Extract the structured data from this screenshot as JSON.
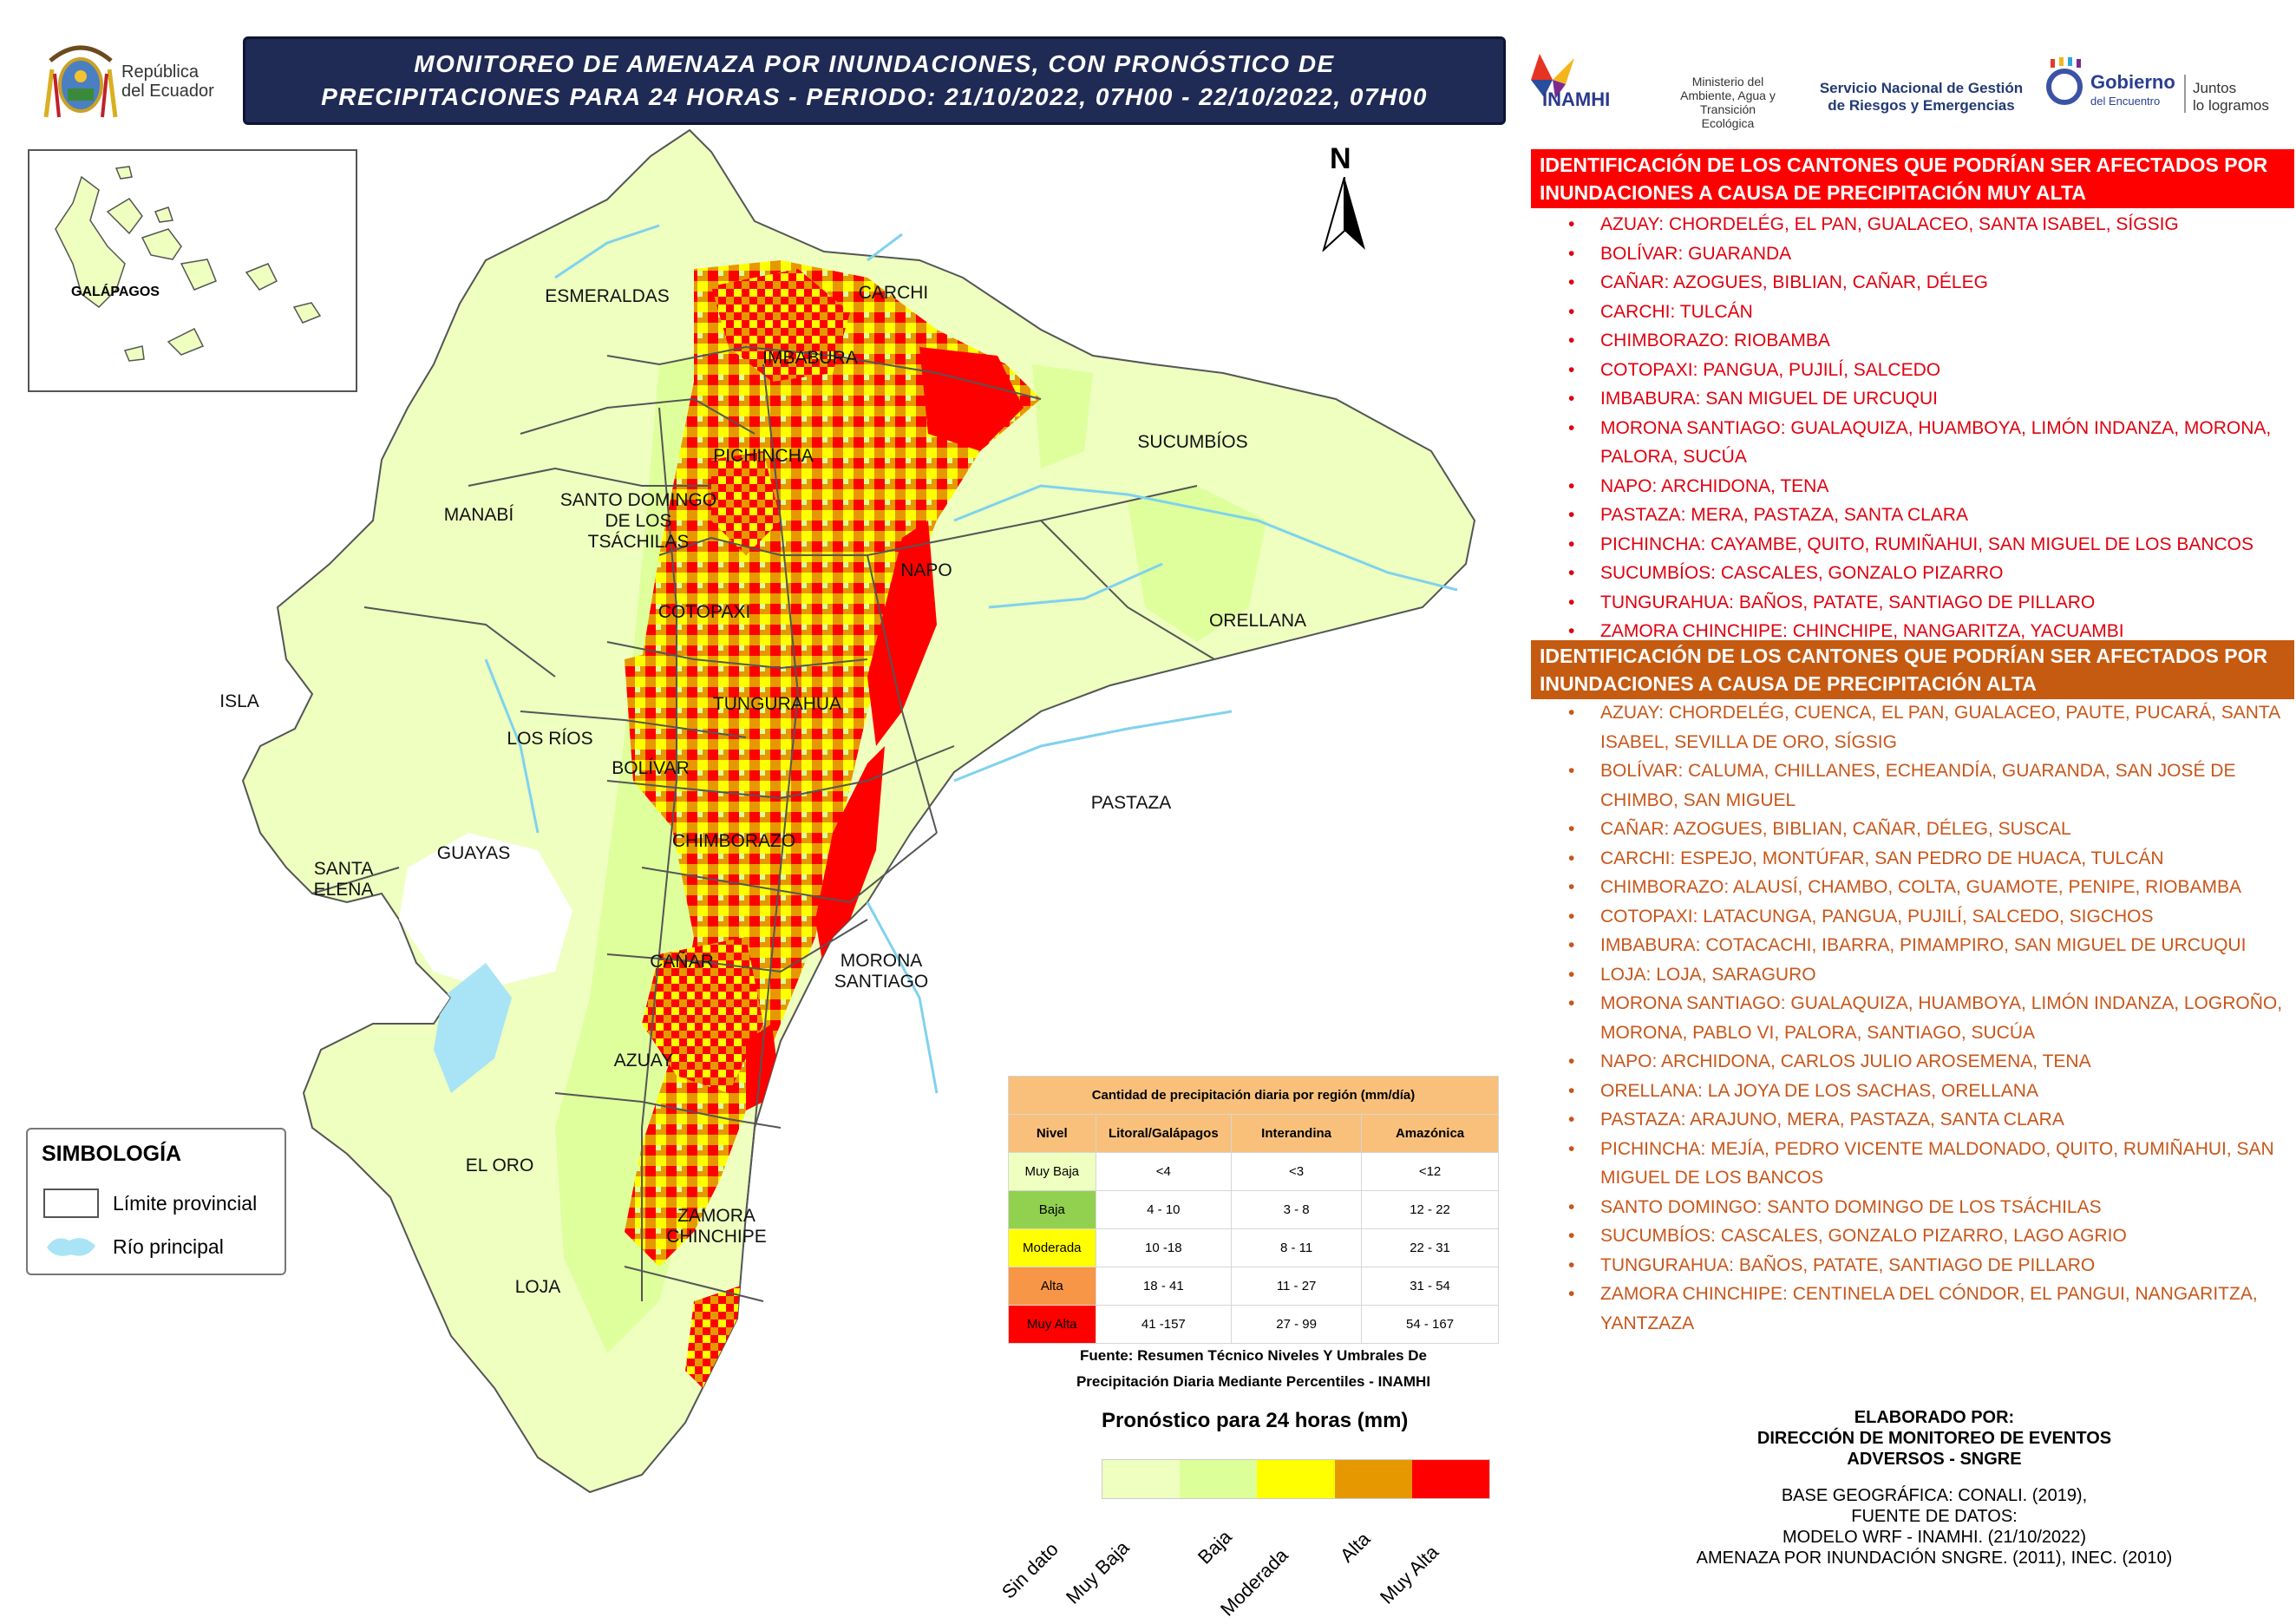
{
  "header": {
    "country_text_line1": "República",
    "country_text_line2": "del Ecuador",
    "title_line1": "MONITOREO DE AMENAZA POR INUNDACIONES, CON PRONÓSTICO DE",
    "title_line2": "PRECIPITACIONES  PARA 24  HORAS - PERIODO: 21/10/2022, 07H00 - 22/10/2022, 07H00",
    "logo_inamhi": "INAMHI",
    "logo_ministerio": [
      "Ministerio del",
      "Ambiente, Agua y",
      "Transición Ecológica"
    ],
    "logo_sngre": [
      "Servicio Nacional de Gestión",
      "de Riesgos y Emergencias"
    ],
    "logo_gobierno": "Gobierno",
    "logo_gobierno_sub": "del Encuentro",
    "logo_juntos": [
      "Juntos",
      "lo logramos"
    ]
  },
  "inset": {
    "label": "GALÁPAGOS"
  },
  "north_label": "N",
  "map_labels": {
    "esmeraldas": "ESMERALDAS",
    "carchi": "CARCHI",
    "imbabura": "IMBABURA",
    "sucumbios": "SUCUMBÍOS",
    "pichincha": "PICHINCHA",
    "manabi": "MANABÍ",
    "santo_domingo": [
      "SANTO DOMINGO",
      "DE LOS",
      "TSÁCHILAS"
    ],
    "napo": "NAPO",
    "orellana": "ORELLANA",
    "cotopaxi": "COTOPAXI",
    "isla": "ISLA",
    "tungurahua": "TUNGURAHUA",
    "los_rios": "LOS RÍOS",
    "bolivar": "BOLÍVAR",
    "pastaza": "PASTAZA",
    "santa_elena": [
      "SANTA",
      "ELENA"
    ],
    "guayas": "GUAYAS",
    "chimborazo": "CHIMBORAZO",
    "canar": "CAÑAR",
    "morona": [
      "MORONA",
      "SANTIAGO"
    ],
    "azuay": "AZUAY",
    "el_oro": "EL ORO",
    "zamora": [
      "ZAMORA",
      "CHINCHIPE"
    ],
    "loja": "LOJA"
  },
  "symbology": {
    "title": "SIMBOLOGÍA",
    "limit_label": "Límite provincial",
    "river_label": "Río principal"
  },
  "list_muy_alta": {
    "header": [
      "IDENTIFICACIÓN DE LOS CANTONES QUE PODRÍAN SER AFECTADOS POR",
      "INUNDACIONES A CAUSA DE  PRECIPITACIÓN MUY ALTA"
    ],
    "color": "#ff0000",
    "items": [
      "AZUAY: CHORDELÉG, EL PAN, GUALACEO, SANTA ISABEL, SÍGSIG",
      "BOLÍVAR: GUARANDA",
      "CAÑAR: AZOGUES, BIBLIAN, CAÑAR, DÉLEG",
      "CARCHI: TULCÁN",
      "CHIMBORAZO: RIOBAMBA",
      "COTOPAXI: PANGUA, PUJILÍ, SALCEDO",
      "IMBABURA: SAN MIGUEL DE URCUQUI",
      "MORONA SANTIAGO: GUALAQUIZA, HUAMBOYA, LIMÓN INDANZA, MORONA, PALORA, SUCÚA",
      "NAPO: ARCHIDONA, TENA",
      "PASTAZA: MERA, PASTAZA, SANTA CLARA",
      "PICHINCHA: CAYAMBE, QUITO, RUMIÑAHUI, SAN MIGUEL DE LOS BANCOS",
      "SUCUMBÍOS: CASCALES, GONZALO PIZARRO",
      "TUNGURAHUA: BAÑOS, PATATE, SANTIAGO DE PILLARO",
      "ZAMORA CHINCHIPE: CHINCHIPE, NANGARITZA, YACUAMBI"
    ]
  },
  "list_alta": {
    "header": [
      "IDENTIFICACIÓN DE LOS CANTONES QUE PODRÍAN SER AFECTADOS POR",
      "INUNDACIONES A CAUSA DE  PRECIPITACIÓN  ALTA"
    ],
    "color": "#c55a11",
    "items": [
      "AZUAY: CHORDELÉG, CUENCA, EL PAN, GUALACEO, PAUTE, PUCARÁ, SANTA ISABEL, SEVILLA DE ORO, SÍGSIG",
      "BOLÍVAR: CALUMA, CHILLANES, ECHEANDÍA, GUARANDA, SAN JOSÉ DE CHIMBO, SAN MIGUEL",
      "CAÑAR: AZOGUES, BIBLIAN, CAÑAR, DÉLEG, SUSCAL",
      "CARCHI: ESPEJO, MONTÚFAR, SAN PEDRO DE HUACA, TULCÁN",
      "CHIMBORAZO: ALAUSÍ, CHAMBO, COLTA, GUAMOTE, PENIPE, RIOBAMBA",
      "COTOPAXI: LATACUNGA, PANGUA, PUJILÍ, SALCEDO, SIGCHOS",
      "IMBABURA: COTACACHI, IBARRA, PIMAMPIRO, SAN MIGUEL DE URCUQUI",
      "LOJA: LOJA, SARAGURO",
      "MORONA SANTIAGO: GUALAQUIZA, HUAMBOYA, LIMÓN INDANZA, LOGROÑO, MORONA, PABLO VI, PALORA, SANTIAGO, SUCÚA",
      "NAPO: ARCHIDONA, CARLOS JULIO AROSEMENA, TENA",
      "ORELLANA: LA JOYA DE LOS SACHAS, ORELLANA",
      "PASTAZA: ARAJUNO, MERA, PASTAZA, SANTA CLARA",
      "PICHINCHA: MEJÍA, PEDRO VICENTE MALDONADO, QUITO, RUMIÑAHUI, SAN MIGUEL DE LOS BANCOS",
      "SANTO DOMINGO: SANTO DOMINGO DE LOS TSÁCHILAS",
      "SUCUMBÍOS: CASCALES, GONZALO PIZARRO, LAGO AGRIO",
      "TUNGURAHUA: BAÑOS, PATATE, SANTIAGO DE PILLARO",
      "ZAMORA CHINCHIPE: CENTINELA DEL CÓNDOR, EL PANGUI, NANGARITZA, YANTZAZA"
    ]
  },
  "precip_table": {
    "title": "Cantidad de precipitación diaria por región (mm/día)",
    "columns": [
      "Nivel",
      "Litoral/Galápagos",
      "Interandina",
      "Amazónica"
    ],
    "rows": [
      {
        "level": "Muy Baja",
        "color": "#eeffc0",
        "values": [
          "<4",
          "<3",
          "<12"
        ]
      },
      {
        "level": "Baja",
        "color": "#92d050",
        "values": [
          "4 - 10",
          "3 - 8",
          "12 - 22"
        ]
      },
      {
        "level": "Moderada",
        "color": "#ffff00",
        "values": [
          "10 -18",
          "8 - 11",
          "22 - 31"
        ]
      },
      {
        "level": "Alta",
        "color": "#f79646",
        "values": [
          "18 - 41",
          "11 - 27",
          "31 - 54"
        ]
      },
      {
        "level": "Muy Alta",
        "color": "#ff0000",
        "values": [
          "41 -157",
          "27 - 99",
          "54 - 167"
        ]
      }
    ],
    "source": [
      "Fuente: Resumen Técnico Niveles Y Umbrales De",
      "Precipitación Diaria Mediante Percentiles - INAMHI"
    ]
  },
  "forecast_legend": {
    "title": "Pronóstico para 24 horas (mm)",
    "classes": [
      {
        "label": "Sin dato",
        "color": "#eeffc0"
      },
      {
        "label": "Muy Baja",
        "color": "#ddff99"
      },
      {
        "label": "Baja",
        "color": "#ffff00"
      },
      {
        "label": "Moderada",
        "color": "#e69800"
      },
      {
        "label": "Alta",
        "color": "#ff0000"
      },
      {
        "label": "Muy Alta",
        "color": ""
      }
    ]
  },
  "credits": {
    "lines_bold": [
      "ELABORADO POR:",
      "DIRECCIÓN DE MONITOREO DE EVENTOS",
      "ADVERSOS - SNGRE"
    ],
    "lines": [
      "BASE GEOGRÁFICA: CONALI. (2019),",
      "FUENTE DE DATOS:",
      "MODELO WRF - INAMHI. (21/10/2022)",
      "AMENAZA POR INUNDACIÓN SNGRE. (2011), INEC. (2010)"
    ]
  }
}
